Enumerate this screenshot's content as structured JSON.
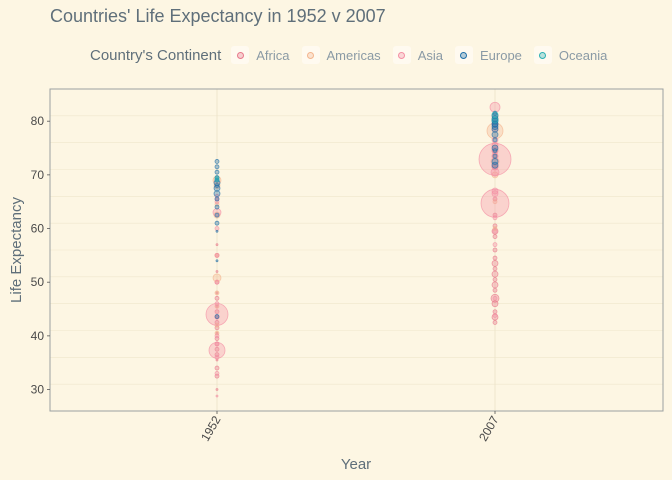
{
  "chart_data": {
    "type": "scatter",
    "title": "Countries' Life Expectancy in 1952 v 2007",
    "xlabel": "Year",
    "ylabel": "Life Expectancy",
    "categories": [
      "1952",
      "2007"
    ],
    "ylim": [
      26,
      86
    ],
    "yticks": [
      30,
      40,
      50,
      60,
      70,
      80
    ],
    "grid": true,
    "legend_position": "top",
    "legend": {
      "title": "Country's Continent",
      "entries": [
        {
          "name": "Africa",
          "color": "#e8798c"
        },
        {
          "name": "Americas",
          "color": "#f3b58e"
        },
        {
          "name": "Asia",
          "color": "#f48fa4"
        },
        {
          "name": "Europe",
          "color": "#1f6fa8"
        },
        {
          "name": "Oceania",
          "color": "#2bb0b4"
        }
      ]
    },
    "series": [
      {
        "name": "Africa",
        "x": [
          "1952",
          "1952",
          "1952",
          "1952",
          "1952",
          "1952",
          "1952",
          "1952",
          "1952",
          "1952",
          "1952",
          "1952",
          "1952",
          "1952",
          "1952",
          "1952",
          "1952",
          "1952",
          "1952",
          "1952",
          "2007",
          "2007",
          "2007",
          "2007",
          "2007",
          "2007",
          "2007",
          "2007",
          "2007",
          "2007",
          "2007",
          "2007",
          "2007",
          "2007",
          "2007",
          "2007",
          "2007",
          "2007",
          "2007",
          "2007"
        ],
        "y": [
          30.0,
          32.5,
          34.0,
          35.5,
          36.5,
          37.5,
          38.5,
          39.5,
          40.5,
          41.5,
          42.5,
          43.5,
          44.5,
          45.5,
          47.0,
          48.0,
          50.0,
          52.0,
          55.0,
          57.0,
          42.5,
          43.5,
          44.5,
          46.0,
          47.0,
          48.5,
          49.5,
          50.5,
          51.5,
          52.5,
          53.5,
          54.5,
          56.0,
          58.5,
          59.5,
          60.5,
          62.5,
          65.5,
          71.5,
          74.0
        ],
        "size": [
          1,
          2,
          2,
          1,
          2,
          2,
          2,
          2,
          1,
          2,
          2,
          2,
          2,
          1,
          2,
          1,
          2,
          1,
          2,
          1,
          2,
          3,
          2,
          3,
          4,
          2,
          3,
          2,
          3,
          2,
          3,
          2,
          2,
          2,
          3,
          2,
          2,
          2,
          3,
          2
        ]
      },
      {
        "name": "Americas",
        "x": [
          "1952",
          "1952",
          "1952",
          "1952",
          "1952",
          "1952",
          "1952",
          "1952",
          "1952",
          "1952",
          "2007",
          "2007",
          "2007",
          "2007",
          "2007",
          "2007",
          "2007",
          "2007",
          "2007",
          "2007"
        ],
        "y": [
          40.5,
          42.0,
          45.5,
          48.0,
          50.8,
          55.0,
          62.5,
          64.5,
          68.0,
          69.0,
          60.0,
          65.0,
          70.0,
          71.5,
          72.5,
          73.5,
          74.5,
          75.5,
          78.2,
          80.5
        ],
        "size": [
          2,
          2,
          2,
          2,
          4,
          2,
          3,
          2,
          3,
          4,
          2,
          2,
          3,
          3,
          4,
          3,
          3,
          3,
          8,
          3
        ]
      },
      {
        "name": "Asia",
        "x": [
          "1952",
          "1952",
          "1952",
          "1952",
          "1952",
          "1952",
          "1952",
          "1952",
          "1952",
          "1952",
          "1952",
          "1952",
          "1952",
          "1952",
          "1952",
          "1952",
          "2007",
          "2007",
          "2007",
          "2007",
          "2007",
          "2007",
          "2007",
          "2007",
          "2007",
          "2007",
          "2007",
          "2007",
          "2007",
          "2007",
          "2007",
          "2007",
          "2007",
          "2007",
          "2007"
        ],
        "y": [
          28.8,
          33.0,
          36.0,
          37.3,
          38.5,
          40.0,
          43.5,
          44.0,
          46.0,
          50.0,
          55.0,
          60.0,
          63.0,
          65.0,
          66.0,
          65.5,
          43.8,
          47.0,
          57.0,
          59.5,
          62.0,
          64.7,
          66.5,
          67.0,
          70.5,
          71.5,
          72.9,
          73.5,
          74.5,
          75.5,
          76.5,
          78.5,
          79.5,
          81.0,
          82.6
        ],
        "size": [
          1,
          2,
          2,
          8,
          2,
          2,
          2,
          11,
          2,
          2,
          2,
          2,
          4,
          2,
          2,
          2,
          2,
          2,
          2,
          2,
          2,
          14,
          3,
          3,
          4,
          3,
          16,
          3,
          3,
          3,
          3,
          3,
          3,
          3,
          5
        ]
      },
      {
        "name": "Europe",
        "x": [
          "1952",
          "1952",
          "1952",
          "1952",
          "1952",
          "1952",
          "1952",
          "1952",
          "1952",
          "1952",
          "1952",
          "1952",
          "1952",
          "1952",
          "1952",
          "1952",
          "2007",
          "2007",
          "2007",
          "2007",
          "2007",
          "2007",
          "2007",
          "2007",
          "2007",
          "2007",
          "2007",
          "2007",
          "2007",
          "2007",
          "2007",
          "2007"
        ],
        "y": [
          43.6,
          54.0,
          59.5,
          61.0,
          62.5,
          64.0,
          65.5,
          66.5,
          67.5,
          68.0,
          68.5,
          69.0,
          69.5,
          70.5,
          71.5,
          72.5,
          71.8,
          72.5,
          73.5,
          74.5,
          75.0,
          76.5,
          77.5,
          78.5,
          79.0,
          79.5,
          80.0,
          80.5,
          81.0,
          81.5,
          79.4,
          80.2
        ],
        "size": [
          2,
          1,
          1,
          2,
          2,
          2,
          2,
          3,
          3,
          2,
          3,
          2,
          2,
          2,
          2,
          2,
          3,
          3,
          2,
          2,
          3,
          2,
          3,
          3,
          3,
          3,
          3,
          3,
          3,
          2,
          3,
          3
        ]
      },
      {
        "name": "Oceania",
        "x": [
          "1952",
          "1952",
          "2007",
          "2007"
        ],
        "y": [
          69.1,
          69.4,
          80.2,
          81.2
        ],
        "size": [
          2,
          2,
          3,
          3
        ]
      }
    ]
  }
}
